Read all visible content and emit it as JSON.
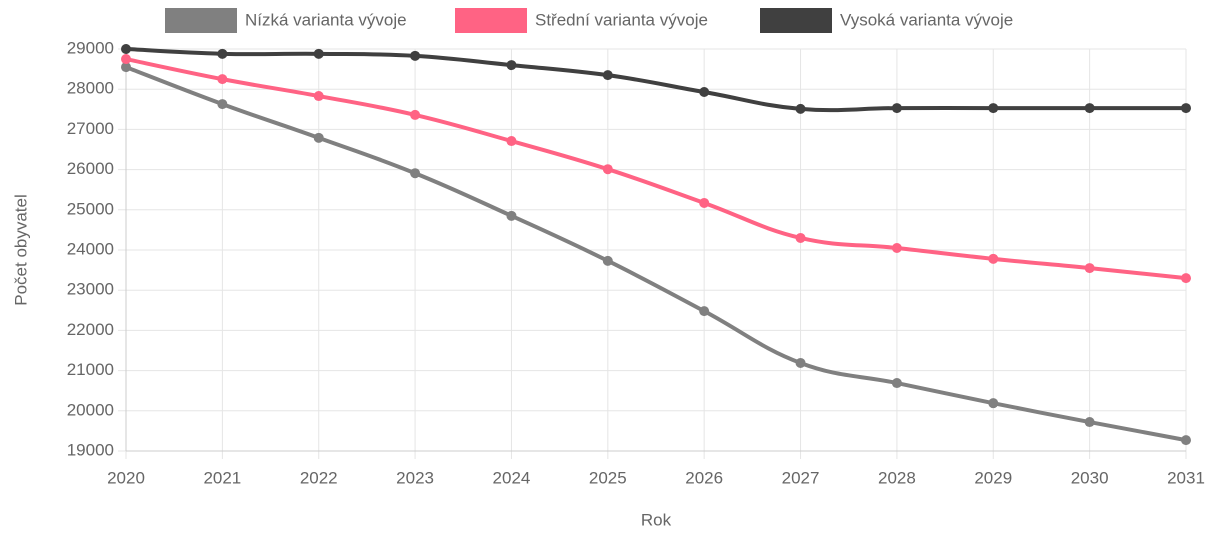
{
  "chart_data": {
    "type": "line",
    "categories": [
      "2020",
      "2021",
      "2022",
      "2023",
      "2024",
      "2025",
      "2026",
      "2027",
      "2028",
      "2029",
      "2030",
      "2031"
    ],
    "series": [
      {
        "name": "Nízká varianta vývoje",
        "color": "#808080",
        "values": [
          28550,
          27630,
          26790,
          25910,
          24850,
          23730,
          22480,
          21190,
          20690,
          20190,
          19720,
          19270
        ]
      },
      {
        "name": "Střední varianta vývoje",
        "color": "#ff6384",
        "values": [
          28750,
          28250,
          27830,
          27360,
          26710,
          26010,
          25170,
          24300,
          24050,
          23780,
          23550,
          23300
        ]
      },
      {
        "name": "Vysoká varianta vývoje",
        "color": "#404040",
        "values": [
          29000,
          28880,
          28880,
          28830,
          28600,
          28350,
          27930,
          27510,
          27530,
          27530,
          27530,
          27530
        ]
      }
    ],
    "xlabel": "Rok",
    "ylabel": "Počet obyvatel",
    "ylim": [
      19000,
      29000
    ],
    "yticks": [
      19000,
      20000,
      21000,
      22000,
      23000,
      24000,
      25000,
      26000,
      27000,
      28000,
      29000
    ],
    "grid": true,
    "legend": "top"
  }
}
